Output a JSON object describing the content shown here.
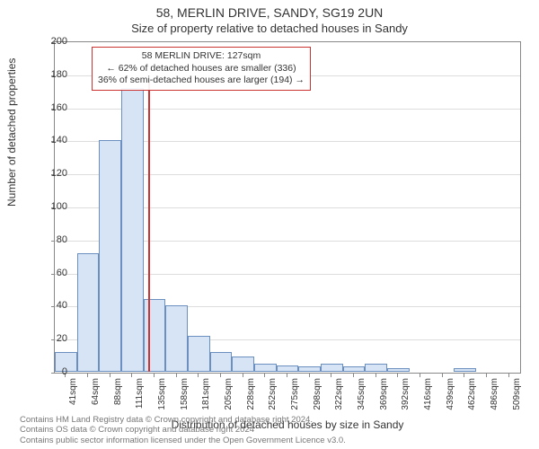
{
  "title_main": "58, MERLIN DRIVE, SANDY, SG19 2UN",
  "title_sub": "Size of property relative to detached houses in Sandy",
  "ylabel": "Number of detached properties",
  "xlabel": "Distribution of detached houses by size in Sandy",
  "ylim": [
    0,
    200
  ],
  "ytick_step": 20,
  "chart": {
    "type": "histogram",
    "bar_fill": "#d6e4f5",
    "bar_stroke": "#6b8fbf",
    "bar_width_ratio": 1.0,
    "marker_color": "#cc3333",
    "marker_x_value": 127,
    "marker_height": 175,
    "background_color": "#ffffff",
    "grid_color": "#dddddd",
    "categories": [
      "41sqm",
      "64sqm",
      "88sqm",
      "111sqm",
      "135sqm",
      "158sqm",
      "181sqm",
      "205sqm",
      "228sqm",
      "252sqm",
      "275sqm",
      "298sqm",
      "322sqm",
      "345sqm",
      "369sqm",
      "392sqm",
      "416sqm",
      "439sqm",
      "462sqm",
      "486sqm",
      "509sqm"
    ],
    "values": [
      12,
      72,
      140,
      172,
      44,
      40,
      22,
      12,
      9,
      5,
      4,
      3,
      5,
      3,
      5,
      2,
      0,
      0,
      2,
      0,
      0
    ]
  },
  "annotation": {
    "line1": "58 MERLIN DRIVE: 127sqm",
    "line2": "← 62% of detached houses are smaller (336)",
    "line3": "36% of semi-detached houses are larger (194) →",
    "border_color": "#cc3333"
  },
  "footer": {
    "line1": "Contains HM Land Registry data © Crown copyright and database right 2024.",
    "line2": "Contains OS data © Crown copyright and database right 2024",
    "line3": "Contains public sector information licensed under the Open Government Licence v3.0."
  }
}
